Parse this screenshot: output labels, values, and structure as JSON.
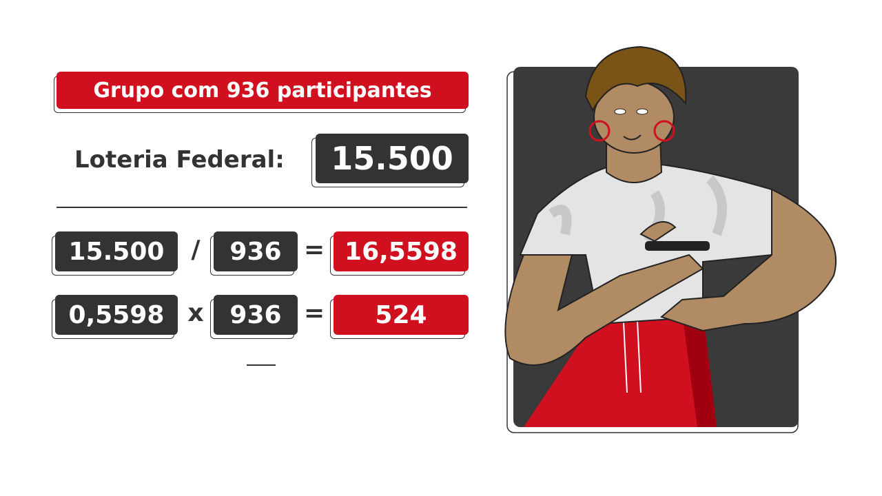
{
  "header": {
    "title": "Grupo com 936 participantes"
  },
  "prize": {
    "label": "Loteria Federal:",
    "value": "15.500"
  },
  "calculations": [
    [
      "15.500",
      "/",
      "936",
      "=",
      "16,5598"
    ],
    [
      "0,5598",
      "x",
      "936",
      "=",
      "524"
    ]
  ]
}
